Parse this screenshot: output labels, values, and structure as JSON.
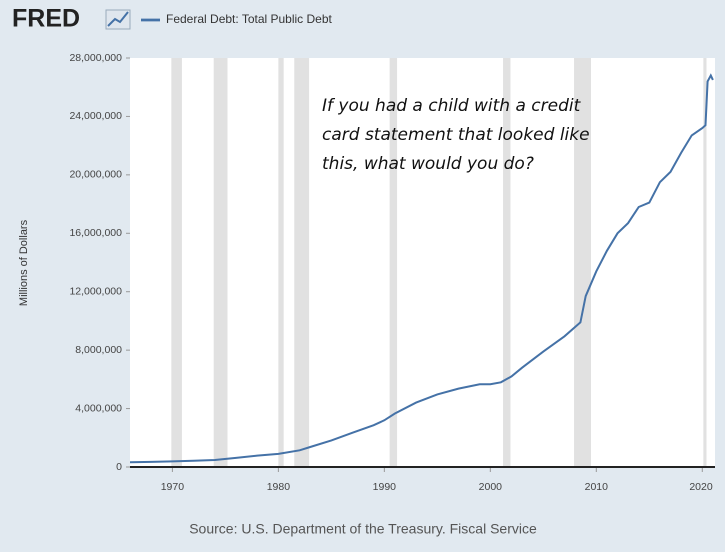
{
  "chart_data": {
    "type": "line",
    "logo": "FRED",
    "ylabel": "Millions of Dollars",
    "source": "Source: U.S. Department of the Treasury. Fiscal Service",
    "annotation": [
      "If you had a child with a credit",
      "card statement that looked like",
      "this, what would you do?"
    ],
    "x": [
      1966,
      1968,
      1970,
      1972,
      1974,
      1976,
      1978,
      1980,
      1982,
      1983,
      1985,
      1987,
      1989,
      1990,
      1991,
      1993,
      1995,
      1997,
      1999,
      2000,
      2001,
      2002,
      2003,
      2005,
      2007,
      2008.5,
      2009,
      2010,
      2011,
      2012,
      2013,
      2014,
      2015,
      2016,
      2017,
      2018,
      2019,
      2020,
      2020.3,
      2020.5,
      2020.8,
      2021
    ],
    "series": [
      {
        "name": "Federal Debt: Total Public Debt",
        "color": "#4572a7",
        "values": [
          320000,
          350000,
          380000,
          430000,
          480000,
          620000,
          780000,
          900000,
          1140000,
          1370000,
          1820000,
          2350000,
          2860000,
          3200000,
          3660000,
          4410000,
          4970000,
          5370000,
          5660000,
          5670000,
          5800000,
          6200000,
          6800000,
          7900000,
          8950000,
          9900000,
          11700000,
          13400000,
          14800000,
          16000000,
          16700000,
          17800000,
          18100000,
          19500000,
          20200000,
          21500000,
          22700000,
          23200000,
          23400000,
          26400000,
          26800000,
          26500000
        ]
      }
    ],
    "shading": [
      [
        1969.9,
        1970.9
      ],
      [
        1973.9,
        1975.2
      ],
      [
        1980.0,
        1980.5
      ],
      [
        1981.5,
        1982.9
      ],
      [
        1990.5,
        1991.2
      ],
      [
        2001.2,
        2001.9
      ],
      [
        2007.9,
        2009.5
      ],
      [
        2020.1,
        2020.4
      ]
    ],
    "xlim": [
      1966,
      2021.2
    ],
    "xticks": [
      1970,
      1980,
      1990,
      2000,
      2010,
      2020
    ],
    "ylim": [
      0,
      28000000
    ],
    "yticks": [
      0,
      {
        "value": 4000000,
        "label": "4,000,000"
      },
      {
        "value": 8000000,
        "label": "8,000,000"
      },
      {
        "value": 12000000,
        "label": "12,000,000"
      },
      {
        "value": 16000000,
        "label": "16,000,000"
      },
      {
        "value": 20000000,
        "label": "20,000,000"
      },
      {
        "value": 24000000,
        "label": "24,000,000"
      },
      {
        "value": 28000000,
        "label": "28,000,000"
      }
    ]
  }
}
